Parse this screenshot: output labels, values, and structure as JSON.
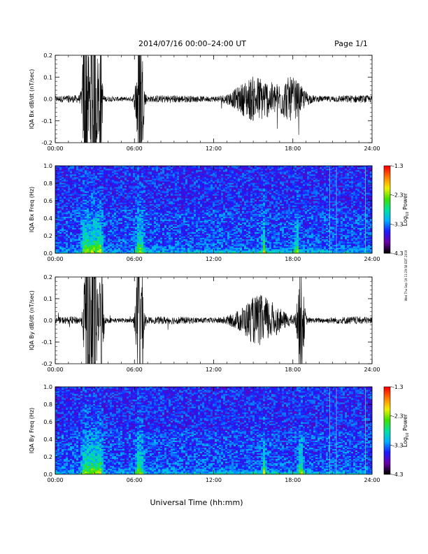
{
  "header": {
    "title": "2014/07/16  00:00–24:00 UT",
    "page_label": "Page 1/1"
  },
  "xaxis": {
    "label": "Universal Time (hh:mm)",
    "ticks": [
      "00:00",
      "06:00",
      "12:00",
      "18:00",
      "24:00"
    ]
  },
  "side_note": "Wed Thu Sep 19 11:29:58 EDT 2019",
  "colorbar": {
    "label": "Log10 Power",
    "label_main": "Log",
    "label_sub": "10",
    "label_tail": " Power",
    "ticks": [
      "-1.3",
      "-2.3",
      "-3.3",
      "-4.3"
    ],
    "colors": [
      "#000000",
      "#6a00a8",
      "#1a1aff",
      "#00b0ff",
      "#00e0a0",
      "#40e000",
      "#f0f000",
      "#ff8000",
      "#ff0000"
    ]
  },
  "chart_data": [
    {
      "type": "line",
      "ylabel": "IQA Bx dB/dt (nT/sec)",
      "xlim": [
        0,
        24
      ],
      "ylim": [
        -0.2,
        0.2
      ],
      "yticks": [
        "0.2",
        "0.1",
        "0.0",
        "-0.1",
        "-0.2"
      ],
      "ytick_values": [
        0.2,
        0.1,
        0.0,
        -0.1,
        -0.2
      ],
      "bursts": [
        [
          2.3,
          0.2,
          0.55
        ],
        [
          2.9,
          0.25,
          0.6
        ],
        [
          3.4,
          0.15,
          0.35
        ],
        [
          6.4,
          0.25,
          0.45
        ],
        [
          15.2,
          1.5,
          0.08
        ],
        [
          17.9,
          1.0,
          0.08
        ]
      ]
    },
    {
      "type": "heatmap",
      "ylabel": "IQA Bx Freq (Hz)",
      "xlim": [
        0,
        24
      ],
      "ylim": [
        0.0,
        1.0
      ],
      "yticks": [
        "1.0",
        "0.8",
        "0.6",
        "0.4",
        "0.2",
        "0.0"
      ],
      "ytick_values": [
        1.0,
        0.8,
        0.6,
        0.4,
        0.2,
        0.0
      ],
      "bursts": [
        [
          2.3,
          0.3
        ],
        [
          2.9,
          0.35
        ],
        [
          3.4,
          0.2
        ],
        [
          6.4,
          0.3
        ],
        [
          15.8,
          0.12
        ],
        [
          18.3,
          0.15
        ]
      ],
      "line_marks": [
        20.8,
        21.3,
        23.5
      ]
    },
    {
      "type": "line",
      "ylabel": "IQA By dB/dt (nT/sec)",
      "xlim": [
        0,
        24
      ],
      "ylim": [
        -0.2,
        0.2
      ],
      "yticks": [
        "0.2",
        "0.1",
        "0.0",
        "-0.1",
        "-0.2"
      ],
      "ytick_values": [
        0.2,
        0.1,
        0.0,
        -0.1,
        -0.2
      ],
      "bursts": [
        [
          2.4,
          0.2,
          0.55
        ],
        [
          2.9,
          0.25,
          0.6
        ],
        [
          3.5,
          0.15,
          0.35
        ],
        [
          6.4,
          0.25,
          0.45
        ],
        [
          15.5,
          1.5,
          0.09
        ],
        [
          18.6,
          0.25,
          0.25
        ]
      ]
    },
    {
      "type": "heatmap",
      "ylabel": "IQA By Freq (Hz)",
      "xlim": [
        0,
        24
      ],
      "ylim": [
        0.0,
        1.0
      ],
      "yticks": [
        "1.0",
        "0.8",
        "0.6",
        "0.4",
        "0.2",
        "0.0"
      ],
      "ytick_values": [
        1.0,
        0.8,
        0.6,
        0.4,
        0.2,
        0.0
      ],
      "bursts": [
        [
          2.3,
          0.3
        ],
        [
          2.9,
          0.35
        ],
        [
          3.4,
          0.2
        ],
        [
          6.4,
          0.3
        ],
        [
          15.8,
          0.12
        ],
        [
          18.6,
          0.18
        ]
      ],
      "line_marks": [
        20.8,
        21.3,
        23.5
      ]
    }
  ]
}
